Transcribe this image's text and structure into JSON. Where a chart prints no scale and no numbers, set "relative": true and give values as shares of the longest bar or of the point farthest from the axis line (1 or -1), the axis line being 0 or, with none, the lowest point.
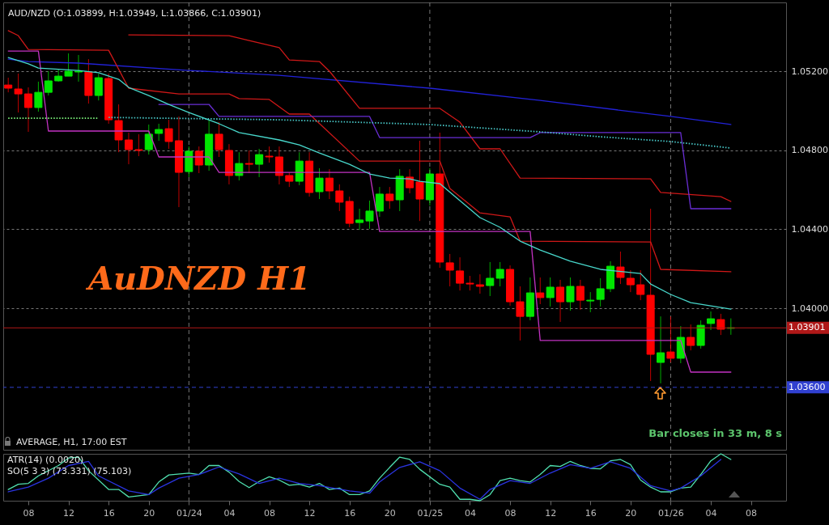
{
  "chart_data": [
    {
      "type": "candlestick",
      "title": "AUD/NZD (O:1.03899, H:1.03949, L:1.03866, C:1.03901)",
      "annotations": [
        "AuDNZD  H1",
        "AVERAGE, H1, 17:00 EST",
        "Bar closes in 33 m, 8 s"
      ],
      "x": [
        "--01-23T06:00",
        "--01-23T07:00",
        "--01-23T08:00",
        "--01-23T09:00",
        "--01-23T10:00",
        "--01-23T11:00",
        "--01-23T12:00",
        "--01-23T13:00",
        "--01-23T14:00",
        "--01-23T15:00",
        "--01-23T16:00",
        "--01-23T17:00",
        "--01-23T18:00",
        "--01-23T19:00",
        "--01-23T20:00",
        "--01-23T21:00",
        "--01-23T22:00",
        "--01-23T23:00",
        "--01-24T00:00",
        "--01-24T01:00",
        "--01-24T02:00",
        "--01-24T03:00",
        "--01-24T04:00",
        "--01-24T05:00",
        "--01-24T06:00",
        "--01-24T07:00",
        "--01-24T08:00",
        "--01-24T09:00",
        "--01-24T10:00",
        "--01-24T11:00",
        "--01-24T12:00",
        "--01-24T13:00",
        "--01-24T14:00",
        "--01-24T15:00",
        "--01-24T16:00",
        "--01-24T17:00",
        "--01-24T18:00",
        "--01-24T19:00",
        "--01-24T20:00",
        "--01-24T21:00",
        "--01-24T22:00",
        "--01-24T23:00",
        "--01-25T00:00",
        "--01-25T01:00",
        "--01-25T02:00",
        "--01-25T03:00",
        "--01-25T04:00",
        "--01-25T05:00",
        "--01-25T06:00",
        "--01-25T07:00",
        "--01-25T08:00",
        "--01-25T09:00",
        "--01-25T10:00",
        "--01-25T11:00",
        "--01-25T12:00",
        "--01-25T13:00",
        "--01-25T14:00",
        "--01-25T15:00",
        "--01-25T16:00",
        "--01-25T17:00",
        "--01-25T18:00",
        "--01-25T19:00",
        "--01-25T20:00",
        "--01-25T21:00",
        "--01-25T22:00",
        "--01-25T23:00",
        "--01-26T00:00",
        "--01-26T01:00",
        "--01-26T02:00",
        "--01-26T03:00",
        "--01-26T04:00",
        "--01-26T05:00",
        "--01-26T06:00"
      ],
      "ohlc": [
        [
          1.0513,
          1.05167,
          1.05093,
          1.05114
        ],
        [
          1.0511,
          1.05188,
          1.04991,
          1.05085
        ],
        [
          1.05085,
          1.05118,
          1.04893,
          1.05016
        ],
        [
          1.05016,
          1.05147,
          1.04995,
          1.05093
        ],
        [
          1.05093,
          1.052,
          1.05077,
          1.05151
        ],
        [
          1.05151,
          1.05208,
          1.05147,
          1.05175
        ],
        [
          1.05175,
          1.0529,
          1.05175,
          1.052
        ],
        [
          1.05196,
          1.05282,
          1.05147,
          1.052
        ],
        [
          1.05196,
          1.05261,
          1.05036,
          1.05077
        ],
        [
          1.05077,
          1.05188,
          1.05052,
          1.05167
        ],
        [
          1.05163,
          1.05188,
          1.04934,
          1.04954
        ],
        [
          1.0495,
          1.05032,
          1.0479,
          1.04852
        ],
        [
          1.04852,
          1.04889,
          1.04729,
          1.04803
        ],
        [
          1.04803,
          1.04881,
          1.0477,
          1.04799
        ],
        [
          1.04803,
          1.0493,
          1.04778,
          1.04881
        ],
        [
          1.04885,
          1.04934,
          1.04848,
          1.04905
        ],
        [
          1.04909,
          1.04954,
          1.04807,
          1.04844
        ],
        [
          1.04848,
          1.04971,
          1.04512,
          1.04688
        ],
        [
          1.04692,
          1.04819,
          1.04664,
          1.04795
        ],
        [
          1.04795,
          1.04819,
          1.04684,
          1.04725
        ],
        [
          1.04725,
          1.04954,
          1.04696,
          1.04881
        ],
        [
          1.04881,
          1.04942,
          1.04766,
          1.04803
        ],
        [
          1.04799,
          1.04831,
          1.04627,
          1.04672
        ],
        [
          1.04672,
          1.0479,
          1.04647,
          1.04733
        ],
        [
          1.04733,
          1.04799,
          1.04684,
          1.04729
        ],
        [
          1.04729,
          1.04807,
          1.04664,
          1.04778
        ],
        [
          1.0477,
          1.04819,
          1.04737,
          1.04766
        ],
        [
          1.04766,
          1.04819,
          1.04627,
          1.04672
        ],
        [
          1.04672,
          1.04688,
          1.04614,
          1.04643
        ],
        [
          1.04643,
          1.0479,
          1.04623,
          1.04745
        ],
        [
          1.04745,
          1.0479,
          1.04565,
          1.04586
        ],
        [
          1.0459,
          1.04709,
          1.04553,
          1.04659
        ],
        [
          1.04659,
          1.04704,
          1.04553,
          1.04594
        ],
        [
          1.04594,
          1.04627,
          1.04492,
          1.04537
        ],
        [
          1.04541,
          1.04565,
          1.0441,
          1.0443
        ],
        [
          1.04434,
          1.04504,
          1.04397,
          1.04447
        ],
        [
          1.04442,
          1.04545,
          1.04402,
          1.04492
        ],
        [
          1.04492,
          1.04614,
          1.04463,
          1.04578
        ],
        [
          1.04578,
          1.04614,
          1.04504,
          1.04545
        ],
        [
          1.04549,
          1.04704,
          1.04492,
          1.04668
        ],
        [
          1.04664,
          1.04704,
          1.04582,
          1.0461
        ],
        [
          1.04639,
          1.04848,
          1.04442,
          1.04553
        ],
        [
          1.04549,
          1.04709,
          1.0452,
          1.0468
        ],
        [
          1.0468,
          1.04889,
          1.04205,
          1.04234
        ],
        [
          1.0423,
          1.04275,
          1.04111,
          1.04193
        ],
        [
          1.04189,
          1.04258,
          1.0409,
          1.04127
        ],
        [
          1.04127,
          1.04164,
          1.0409,
          1.04123
        ],
        [
          1.04119,
          1.04172,
          1.04074,
          1.04111
        ],
        [
          1.04115,
          1.04234,
          1.04062,
          1.04152
        ],
        [
          1.04152,
          1.04234,
          1.04111,
          1.04197
        ],
        [
          1.04197,
          1.04217,
          1.04013,
          1.04033
        ],
        [
          1.04033,
          1.04111,
          1.03837,
          1.03959
        ],
        [
          1.03959,
          1.04156,
          1.03939,
          1.04078
        ],
        [
          1.04078,
          1.04156,
          1.04021,
          1.04054
        ],
        [
          1.04054,
          1.04156,
          1.04009,
          1.04107
        ],
        [
          1.04107,
          1.04144,
          1.03931,
          1.04033
        ],
        [
          1.04033,
          1.04156,
          1.03988,
          1.04111
        ],
        [
          1.04111,
          1.04144,
          1.03992,
          1.04041
        ],
        [
          1.04037,
          1.04082,
          1.0398,
          1.04041
        ],
        [
          1.04045,
          1.04152,
          1.04009,
          1.04099
        ],
        [
          1.04099,
          1.04238,
          1.04082,
          1.04213
        ],
        [
          1.04209,
          1.04287,
          1.04123,
          1.04156
        ],
        [
          1.04152,
          1.04193,
          1.04082,
          1.04119
        ],
        [
          1.04119,
          1.04193,
          1.04041,
          1.0407
        ],
        [
          1.04066,
          1.04504,
          1.03632,
          1.03767
        ],
        [
          1.03726,
          1.03959,
          1.0362,
          1.03775
        ],
        [
          1.03779,
          1.03959,
          1.03726,
          1.03747
        ],
        [
          1.03747,
          1.0391,
          1.03722,
          1.03853
        ],
        [
          1.03853,
          1.03918,
          1.03787,
          1.03812
        ],
        [
          1.03812,
          1.03939,
          1.03796,
          1.03914
        ],
        [
          1.03923,
          1.03984,
          1.0389,
          1.03947
        ],
        [
          1.03943,
          1.03972,
          1.03865,
          1.03894
        ],
        [
          1.03899,
          1.03949,
          1.03866,
          1.03901
        ]
      ],
      "colors": [
        "#ff0000",
        "#ff0000",
        "#ff0000",
        "#00e600",
        "#00e600",
        "#00e600",
        "#00e600",
        "#00e600",
        "#ff0000",
        "#00e600",
        "#ff0000",
        "#ff0000",
        "#ff0000",
        "#ff0000",
        "#00e600",
        "#00e600",
        "#ff0000",
        "#ff0000",
        "#00e600",
        "#ff0000",
        "#00e600",
        "#ff0000",
        "#ff0000",
        "#00e600",
        "#ff0000",
        "#00e600",
        "#ff0000",
        "#ff0000",
        "#ff0000",
        "#00e600",
        "#ff0000",
        "#00e600",
        "#ff0000",
        "#ff0000",
        "#ff0000",
        "#00e600",
        "#00e600",
        "#00e600",
        "#ff0000",
        "#00e600",
        "#ff0000",
        "#ff0000",
        "#00e600",
        "#ff0000",
        "#ff0000",
        "#ff0000",
        "#ff0000",
        "#ff0000",
        "#00e600",
        "#00e600",
        "#ff0000",
        "#ff0000",
        "#00e600",
        "#ff0000",
        "#00e600",
        "#ff0000",
        "#00e600",
        "#ff0000",
        "#00e600",
        "#00e600",
        "#00e600",
        "#ff0000",
        "#ff0000",
        "#ff0000",
        "#ff0000",
        "#00e600",
        "#ff0000",
        "#00e600",
        "#ff0000",
        "#00e600",
        "#00e600",
        "#ff0000",
        "#00e600"
      ],
      "series": [
        {
          "type": "line",
          "color": "#2222d8",
          "x": [
            "--01-23T06:00",
            "--01-23T08:00",
            "--01-23T13:00",
            "--01-24T00:00",
            "--01-24T09:00",
            "--01-25T00:00",
            "--01-25T11:00",
            "--01-26T00:00",
            "--01-26T06:00"
          ],
          "values": [
            1.05261,
            1.05249,
            1.05241,
            1.05204,
            1.05179,
            1.05114,
            1.05052,
            1.04971,
            1.0493
          ]
        },
        {
          "type": "line",
          "color": "#d01818",
          "x": [
            "--01-23T06:00",
            "--01-23T07:00",
            "--01-23T08:00",
            "--01-23T16:00",
            "--01-23T18:00",
            "--01-23T23:00",
            "--01-24T04:00",
            "--01-24T05:00",
            "--01-24T08:00",
            "--01-24T10:00",
            "--01-24T12:00",
            "--01-24T17:00",
            "--01-25T01:00",
            "--01-25T02:00",
            "--01-25T05:00",
            "--01-25T08:00",
            "--01-25T09:00",
            "--01-25T22:00",
            "--01-25T23:00",
            "--01-26T06:00"
          ],
          "values": [
            1.05405,
            1.0538,
            1.0531,
            1.05306,
            1.05114,
            1.05085,
            1.05085,
            1.05061,
            1.05057,
            1.04983,
            1.04983,
            1.04745,
            1.04745,
            1.04606,
            1.04483,
            1.04463,
            1.0434,
            1.04336,
            1.04197,
            1.04185
          ]
        },
        {
          "type": "line",
          "color": "#d01818",
          "x": [
            "--01-23T18:00",
            "--01-24T04:00",
            "--01-24T06:00",
            "--01-24T09:00",
            "--01-24T10:00",
            "--01-24T13:00",
            "--01-24T14:00",
            "--01-24T17:00",
            "--01-25T01:00",
            "--01-25T03:00",
            "--01-25T05:00",
            "--01-25T07:00",
            "--01-25T09:00",
            "--01-25T22:00",
            "--01-25T23:00",
            "--01-26T05:00",
            "--01-26T06:00"
          ],
          "values": [
            1.05384,
            1.0538,
            1.05355,
            1.05319,
            1.05257,
            1.05249,
            1.052,
            1.05012,
            1.05012,
            1.04942,
            1.04807,
            1.04807,
            1.04659,
            1.04655,
            1.04586,
            1.04565,
            1.04541
          ]
        },
        {
          "type": "line",
          "color": "#6a2ed6",
          "x": [
            "--01-23T21:00",
            "--01-24T02:00",
            "--01-24T03:00",
            "--01-24T18:00",
            "--01-24T19:00",
            "--01-25T10:00",
            "--01-25T11:00",
            "--01-26T01:00",
            "--01-26T02:00",
            "--01-26T06:00"
          ],
          "values": [
            1.05032,
            1.05032,
            1.04971,
            1.04971,
            1.04864,
            1.04864,
            1.04889,
            1.04889,
            1.04504,
            1.04504
          ]
        },
        {
          "type": "line",
          "color": "#c232c2",
          "x": [
            "--01-23T06:00",
            "--01-23T09:00",
            "--01-23T10:00",
            "--01-23T20:00",
            "--01-23T21:00",
            "--01-24T02:00",
            "--01-24T03:00",
            "--01-24T18:00",
            "--01-24T19:00",
            "--01-25T10:00",
            "--01-25T11:00",
            "--01-26T01:00",
            "--01-26T02:00",
            "--01-26T06:00"
          ],
          "values": [
            1.05302,
            1.05302,
            1.04897,
            1.04897,
            1.04766,
            1.04766,
            1.04688,
            1.04688,
            1.04389,
            1.04389,
            1.03837,
            1.03837,
            1.03677,
            1.03677
          ]
        },
        {
          "type": "line",
          "color": "#80ff80",
          "line_style": "dotted",
          "x": [
            "--01-23T06:00",
            "--01-23T15:00"
          ],
          "values": [
            1.04962,
            1.04962
          ]
        },
        {
          "type": "line",
          "color": "#48c8c8",
          "line_style": "dotted",
          "x": [
            "--01-23T16:00",
            "--01-24T09:00",
            "--01-25T00:00",
            "--01-25T11:00",
            "--01-25T17:00",
            "--01-26T00:00",
            "--01-26T06:00"
          ],
          "values": [
            1.04966,
            1.04954,
            1.0493,
            1.04893,
            1.04868,
            1.04844,
            1.04811
          ]
        },
        {
          "type": "line",
          "color": "#48d8cc",
          "x": [
            "--01-23T06:00",
            "--01-23T08:00",
            "--01-23T09:00",
            "--01-23T13:00",
            "--01-23T15:00",
            "--01-23T17:00",
            "--01-23T18:00",
            "--01-23T20:00",
            "--01-23T22:00",
            "--01-24T00:00",
            "--01-24T03:00",
            "--01-24T05:00",
            "--01-24T09:00",
            "--01-24T11:00",
            "--01-24T13:00",
            "--01-24T16:00",
            "--01-24T18:00",
            "--01-24T20:00",
            "--01-24T22:00",
            "--01-24T23:00",
            "--01-25T01:00",
            "--01-25T03:00",
            "--01-25T05:00",
            "--01-25T07:00",
            "--01-25T09:00",
            "--01-25T11:00",
            "--01-25T14:00",
            "--01-25T17:00",
            "--01-25T21:00",
            "--01-25T22:00",
            "--01-26T00:00",
            "--01-26T02:00",
            "--01-26T06:00"
          ],
          "values": [
            1.05269,
            1.05237,
            1.05216,
            1.05204,
            1.05192,
            1.05159,
            1.05118,
            1.05077,
            1.05032,
            1.04991,
            1.04934,
            1.04889,
            1.04852,
            1.04827,
            1.04786,
            1.04729,
            1.0468,
            1.04659,
            1.04655,
            1.04643,
            1.04631,
            1.04545,
            1.04459,
            1.0441,
            1.0434,
            1.04295,
            1.04238,
            1.04197,
            1.04176,
            1.04123,
            1.0407,
            1.04029,
            1.03996
          ]
        }
      ],
      "xlim": [
        "--01-23T05:30",
        "--01-26T11:30"
      ],
      "ylim": [
        1.03284,
        1.05548
      ],
      "yticks": [
        {
          "value": 1.04,
          "label": "1.04000"
        },
        {
          "value": 1.044,
          "label": "1.04400"
        },
        {
          "value": 1.048,
          "label": "1.04800"
        },
        {
          "value": 1.052,
          "label": "1.05200"
        }
      ],
      "tick_labels": "y",
      "grid": "y",
      "ref_lines": [
        {
          "axis": "y",
          "value": 1.03901,
          "label": "1.03901",
          "color": "#b01818"
        },
        {
          "axis": "y",
          "value": 1.036,
          "label": "1.03600",
          "color": "#3040d0",
          "line_style": "dashed"
        },
        {
          "axis": "x",
          "value": "--01-24T00:00",
          "color": "#777777",
          "line_style": "dashed"
        },
        {
          "axis": "x",
          "value": "--01-25T00:00",
          "color": "#777777",
          "line_style": "dashed"
        },
        {
          "axis": "x",
          "value": "--01-26T00:00",
          "color": "#777777",
          "line_style": "dashed"
        }
      ]
    },
    {
      "type": "line",
      "relative": true,
      "annotations": [
        "ATR(14) (0.0020)",
        "SO(5 3 3) (73.331) (75.103)"
      ],
      "series": [
        {
          "color": "#50e0b0",
          "x": [
            "--01-23T06:00",
            "--01-23T07:00",
            "--01-23T08:00",
            "--01-23T09:00",
            "--01-23T11:00",
            "--01-23T12:00",
            "--01-23T13:00",
            "--01-23T14:00",
            "--01-23T16:00",
            "--01-23T17:00",
            "--01-23T18:00",
            "--01-23T20:00",
            "--01-23T21:00",
            "--01-23T22:00",
            "--01-24T00:00",
            "--01-24T01:00",
            "--01-24T02:00",
            "--01-24T03:00",
            "--01-24T04:00",
            "--01-24T05:00",
            "--01-24T06:00",
            "--01-24T07:00",
            "--01-24T08:00",
            "--01-24T09:00",
            "--01-24T10:00",
            "--01-24T11:00",
            "--01-24T12:00",
            "--01-24T13:00",
            "--01-24T14:00",
            "--01-24T15:00",
            "--01-24T16:00",
            "--01-24T17:00",
            "--01-24T18:00",
            "--01-24T19:00",
            "--01-24T20:00",
            "--01-24T21:00",
            "--01-24T22:00",
            "--01-24T23:00",
            "--01-25T01:00",
            "--01-25T02:00",
            "--01-25T03:00",
            "--01-25T04:00",
            "--01-25T05:00",
            "--01-25T06:00",
            "--01-25T07:00",
            "--01-25T08:00",
            "--01-25T09:00",
            "--01-25T10:00",
            "--01-25T11:00",
            "--01-25T12:00",
            "--01-25T13:00",
            "--01-25T14:00",
            "--01-25T15:00",
            "--01-25T16:00",
            "--01-25T17:00",
            "--01-25T18:00",
            "--01-25T19:00",
            "--01-25T20:00",
            "--01-25T21:00",
            "--01-25T22:00",
            "--01-25T23:00",
            "--01-26T00:00",
            "--01-26T01:00",
            "--01-26T02:00",
            "--01-26T03:00",
            "--01-26T04:00",
            "--01-26T05:00",
            "--01-26T06:00"
          ],
          "values": [
            0.24,
            0.35,
            0.37,
            0.53,
            0.75,
            0.91,
            0.93,
            0.64,
            0.24,
            0.24,
            0.08,
            0.13,
            0.4,
            0.55,
            0.59,
            0.56,
            0.75,
            0.75,
            0.61,
            0.41,
            0.28,
            0.41,
            0.51,
            0.44,
            0.33,
            0.35,
            0.29,
            0.37,
            0.24,
            0.27,
            0.13,
            0.13,
            0.21,
            0.48,
            0.71,
            0.93,
            0.88,
            0.67,
            0.35,
            0.29,
            0.03,
            0.03,
            0,
            0.13,
            0.43,
            0.48,
            0.43,
            0.4,
            0.56,
            0.75,
            0.73,
            0.84,
            0.75,
            0.69,
            0.68,
            0.85,
            0.88,
            0.77,
            0.44,
            0.29,
            0.19,
            0.19,
            0.27,
            0.29,
            0.56,
            0.85,
            1,
            0.88
          ]
        },
        {
          "color": "#2a34e0",
          "x": [
            "--01-23T06:00",
            "--01-23T08:00",
            "--01-23T10:00",
            "--01-23T12:00",
            "--01-23T14:00",
            "--01-23T15:00",
            "--01-23T18:00",
            "--01-23T20:00",
            "--01-23T21:00",
            "--01-23T23:00",
            "--01-24T01:00",
            "--01-24T03:00",
            "--01-24T05:00",
            "--01-24T07:00",
            "--01-24T09:00",
            "--01-24T11:00",
            "--01-24T13:00",
            "--01-24T16:00",
            "--01-24T18:00",
            "--01-24T19:00",
            "--01-24T21:00",
            "--01-24T23:00",
            "--01-25T01:00",
            "--01-25T03:00",
            "--01-25T05:00",
            "--01-25T06:00",
            "--01-25T08:00",
            "--01-25T10:00",
            "--01-25T12:00",
            "--01-25T14:00",
            "--01-25T16:00",
            "--01-25T18:00",
            "--01-25T20:00",
            "--01-25T22:00",
            "--01-26T00:00",
            "--01-26T01:00",
            "--01-26T03:00",
            "--01-26T05:00"
          ],
          "values": [
            0.19,
            0.29,
            0.48,
            0.75,
            0.84,
            0.53,
            0.21,
            0.13,
            0.27,
            0.48,
            0.56,
            0.72,
            0.57,
            0.37,
            0.48,
            0.37,
            0.32,
            0.21,
            0.16,
            0.4,
            0.71,
            0.83,
            0.64,
            0.27,
            0.03,
            0.24,
            0.43,
            0.37,
            0.59,
            0.77,
            0.69,
            0.83,
            0.69,
            0.32,
            0.21,
            0.27,
            0.53,
            0.88
          ]
        }
      ],
      "xlim": [
        "--01-23T05:30",
        "--01-26T11:30"
      ],
      "xticks": [
        {
          "value": "--01-23T08:00",
          "label": "08"
        },
        {
          "value": "--01-23T12:00",
          "label": "12"
        },
        {
          "value": "--01-23T16:00",
          "label": "16"
        },
        {
          "value": "--01-23T20:00",
          "label": "20"
        },
        {
          "value": "--01-24T00:00",
          "label": "01/24"
        },
        {
          "value": "--01-24T04:00",
          "label": "04"
        },
        {
          "value": "--01-24T08:00",
          "label": "08"
        },
        {
          "value": "--01-24T12:00",
          "label": "12"
        },
        {
          "value": "--01-24T16:00",
          "label": "16"
        },
        {
          "value": "--01-24T20:00",
          "label": "20"
        },
        {
          "value": "--01-25T00:00",
          "label": "01/25"
        },
        {
          "value": "--01-25T04:00",
          "label": "04"
        },
        {
          "value": "--01-25T08:00",
          "label": "08"
        },
        {
          "value": "--01-25T12:00",
          "label": "12"
        },
        {
          "value": "--01-25T16:00",
          "label": "16"
        },
        {
          "value": "--01-25T20:00",
          "label": "20"
        },
        {
          "value": "--01-26T00:00",
          "label": "01/26"
        },
        {
          "value": "--01-26T04:00",
          "label": "04"
        },
        {
          "value": "--01-26T08:00",
          "label": "08"
        }
      ],
      "ref_lines": [
        {
          "axis": "x",
          "value": "--01-24T00:00",
          "color": "#777777",
          "line_style": "dashed"
        },
        {
          "axis": "x",
          "value": "--01-25T00:00",
          "color": "#777777",
          "line_style": "dashed"
        },
        {
          "axis": "x",
          "value": "--01-26T00:00",
          "color": "#777777",
          "line_style": "dashed"
        }
      ]
    }
  ]
}
